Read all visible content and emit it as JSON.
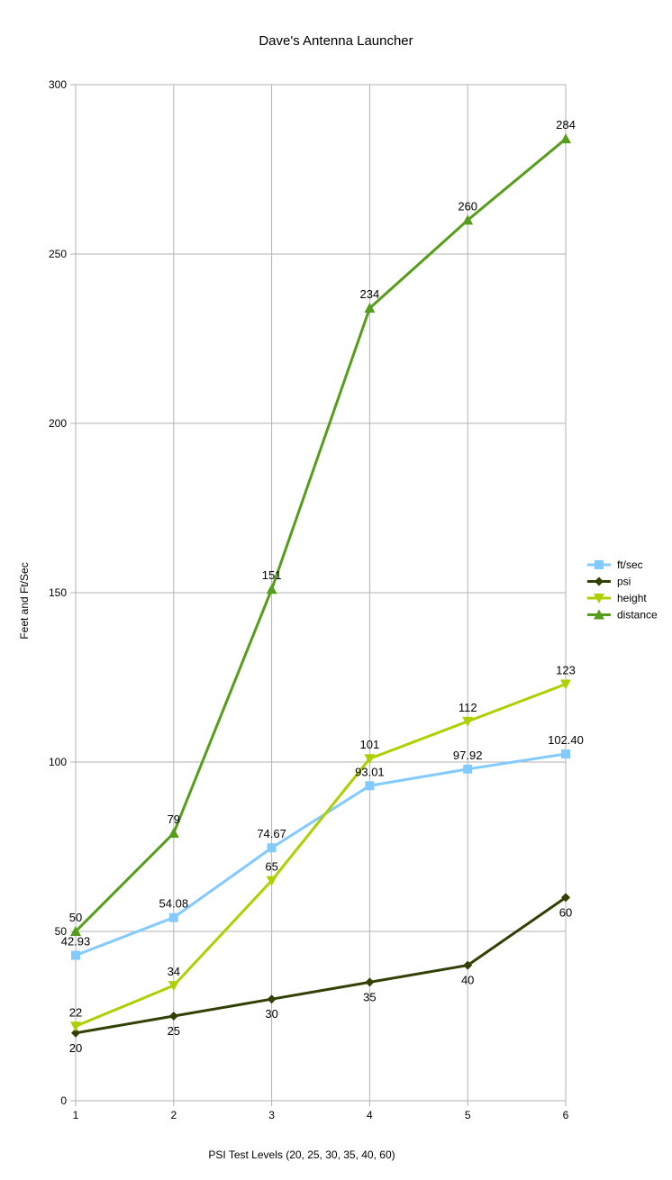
{
  "chart_data": {
    "type": "line",
    "title": "Dave's Antenna Launcher",
    "xlabel": "PSI Test Levels  (20, 25, 30, 35, 40, 60)",
    "ylabel": "Feet and Ft/Sec",
    "x": [
      1,
      2,
      3,
      4,
      5,
      6
    ],
    "ylim": [
      0,
      300
    ],
    "yticks": [
      0,
      50,
      100,
      150,
      200,
      250,
      300
    ],
    "grid": true,
    "legend_position": "right",
    "series": [
      {
        "name": "ft/sec",
        "values": [
          42.93,
          54.08,
          74.67,
          93.01,
          97.92,
          102.4
        ],
        "labels": [
          "42.93",
          "54.08",
          "74.67",
          "93.01",
          "97.92",
          "102.40"
        ],
        "color": "#83caff",
        "marker": "square",
        "label_pos": "above"
      },
      {
        "name": "psi",
        "values": [
          20,
          25,
          30,
          35,
          40,
          60
        ],
        "labels": [
          "20",
          "25",
          "30",
          "35",
          "40",
          "60"
        ],
        "color": "#314004",
        "marker": "diamond",
        "label_pos": "below"
      },
      {
        "name": "height",
        "values": [
          22,
          34,
          65,
          101,
          112,
          123
        ],
        "labels": [
          "22",
          "34",
          "65",
          "101",
          "112",
          "123"
        ],
        "color": "#aecf00",
        "marker": "triangle-down",
        "label_pos": "above"
      },
      {
        "name": "distance",
        "values": [
          50,
          79,
          151,
          234,
          260,
          284
        ],
        "labels": [
          "50",
          "79",
          "151",
          "234",
          "260",
          "284"
        ],
        "color": "#579d1c",
        "marker": "triangle-up",
        "label_pos": "above"
      }
    ]
  }
}
